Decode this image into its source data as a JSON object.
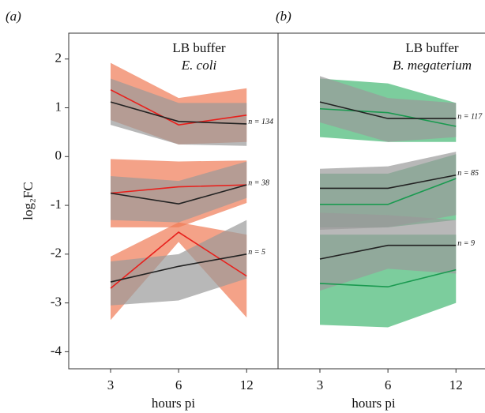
{
  "chart_data": [
    {
      "type": "band-line",
      "panel_label": "(a)",
      "title": "LB buffer",
      "subtitle": "E. coli",
      "subtitle_color": "#e8201c",
      "xlabel": "hours pi",
      "ylabel": "log₂FC",
      "categories": [
        "3",
        "6",
        "12"
      ],
      "ylim": [
        -4.35,
        2.53
      ],
      "yticks": [
        2,
        1,
        0,
        -1,
        -2,
        -3,
        -4
      ],
      "bands": [
        {
          "color": "#f07a55",
          "upper": [
            1.92,
            1.2,
            1.4
          ],
          "lower": [
            0.75,
            0.25,
            0.3
          ]
        },
        {
          "color": "#9a9a9a",
          "upper": [
            1.6,
            1.1,
            1.1
          ],
          "lower": [
            0.65,
            0.25,
            0.22
          ]
        },
        {
          "color": "#f07a55",
          "upper": [
            -0.05,
            -0.1,
            -0.08
          ],
          "lower": [
            -1.45,
            -1.45,
            -0.95
          ]
        },
        {
          "color": "#9a9a9a",
          "upper": [
            -0.4,
            -0.5,
            -0.1
          ],
          "lower": [
            -1.3,
            -1.35,
            -0.85
          ]
        },
        {
          "color": "#f07a55",
          "upper": [
            -2.05,
            -1.35,
            -1.6
          ],
          "lower": [
            -3.35,
            -1.75,
            -3.3
          ]
        },
        {
          "color": "#9a9a9a",
          "upper": [
            -2.15,
            -2.0,
            -1.3
          ],
          "lower": [
            -3.05,
            -2.95,
            -2.5
          ]
        }
      ],
      "series": [
        {
          "color": "#e8201c",
          "values": [
            1.37,
            0.65,
            0.85
          ]
        },
        {
          "color": "#222222",
          "values": [
            1.12,
            0.72,
            0.67
          ]
        },
        {
          "color": "#e8201c",
          "values": [
            -0.75,
            -0.62,
            -0.58
          ]
        },
        {
          "color": "#222222",
          "values": [
            -0.75,
            -0.97,
            -0.58
          ]
        },
        {
          "color": "#e8201c",
          "values": [
            -2.7,
            -1.55,
            -2.45
          ]
        },
        {
          "color": "#222222",
          "values": [
            -2.57,
            -2.25,
            -2.0
          ]
        }
      ],
      "annotations": [
        "n = 134",
        "n = 38",
        "n = 5"
      ]
    },
    {
      "type": "band-line",
      "panel_label": "(b)",
      "title": "LB buffer",
      "subtitle": "B. megaterium",
      "subtitle_color": "#1a9a50",
      "xlabel": "hours pi",
      "categories": [
        "3",
        "6",
        "12"
      ],
      "ylim": [
        -4.35,
        2.53
      ],
      "bands": [
        {
          "color": "#45b873",
          "upper": [
            1.6,
            1.5,
            1.1
          ],
          "lower": [
            0.4,
            0.3,
            0.3
          ]
        },
        {
          "color": "#9a9a9a",
          "upper": [
            1.65,
            1.2,
            1.1
          ],
          "lower": [
            0.7,
            0.3,
            0.4
          ]
        },
        {
          "color": "#45b873",
          "upper": [
            -0.35,
            -0.35,
            0.05
          ],
          "lower": [
            -1.45,
            -1.45,
            -1.3
          ]
        },
        {
          "color": "#9a9a9a",
          "upper": [
            -0.25,
            -0.2,
            0.1
          ],
          "lower": [
            -1.5,
            -1.45,
            -1.2
          ]
        },
        {
          "color": "#45b873",
          "upper": [
            -1.6,
            -1.6,
            -1.6
          ],
          "lower": [
            -3.45,
            -3.5,
            -3.0
          ]
        },
        {
          "color": "#9a9a9a",
          "upper": [
            -1.15,
            -1.2,
            -1.3
          ],
          "lower": [
            -2.75,
            -2.3,
            -2.4
          ]
        }
      ],
      "series": [
        {
          "color": "#1a9a50",
          "values": [
            0.98,
            0.9,
            0.62
          ]
        },
        {
          "color": "#222222",
          "values": [
            1.12,
            0.78,
            0.78
          ]
        },
        {
          "color": "#1a9a50",
          "values": [
            -0.98,
            -0.98,
            -0.45
          ]
        },
        {
          "color": "#222222",
          "values": [
            -0.65,
            -0.65,
            -0.38
          ]
        },
        {
          "color": "#1a9a50",
          "values": [
            -2.6,
            -2.67,
            -2.32
          ]
        },
        {
          "color": "#222222",
          "values": [
            -2.1,
            -1.82,
            -1.82
          ]
        }
      ],
      "annotations": [
        "n = 117",
        "n = 85",
        "n = 9"
      ]
    }
  ]
}
